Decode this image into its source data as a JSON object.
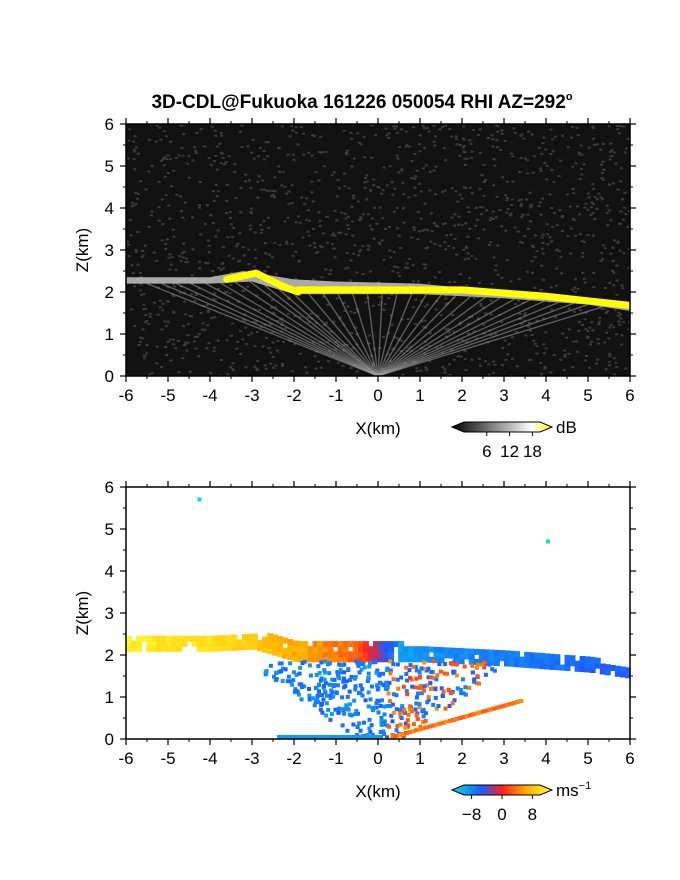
{
  "figure": {
    "title": "3D-CDL@Fukuoka 161226 050054 RHI AZ=292",
    "title_degree": "o"
  },
  "chart_data": [
    {
      "type": "heatmap",
      "panel": "backscatter",
      "xlabel": "X(km)",
      "ylabel": "Z(km)",
      "xlim": [
        -6,
        6
      ],
      "ylim": [
        0,
        6
      ],
      "x_ticks": [
        "-6",
        "-5",
        "-4",
        "-3",
        "-2",
        "-1",
        "0",
        "1",
        "2",
        "3",
        "4",
        "5",
        "6"
      ],
      "y_ticks": [
        "0",
        "1",
        "2",
        "3",
        "4",
        "5",
        "6"
      ],
      "colorbar": {
        "unit": "dB",
        "ticks": [
          "6",
          "12",
          "18"
        ],
        "range": [
          0,
          20
        ],
        "colors": [
          "#000000",
          "#ffffff",
          "#ffff00"
        ]
      },
      "features": {
        "cloud_layer_top_km": [
          [
            -6,
            2.35
          ],
          [
            -4,
            2.35
          ],
          [
            -3.2,
            2.5
          ],
          [
            -2,
            2.3
          ],
          [
            -1,
            2.25
          ],
          [
            1,
            2.2
          ],
          [
            3,
            2.0
          ],
          [
            5,
            1.85
          ],
          [
            6,
            1.65
          ]
        ],
        "cloud_layer_base_km": [
          [
            -6,
            2.2
          ],
          [
            -4,
            2.2
          ],
          [
            -3,
            2.25
          ],
          [
            -2,
            1.95
          ],
          [
            -1,
            1.95
          ],
          [
            1,
            1.95
          ],
          [
            3,
            1.85
          ],
          [
            5,
            1.7
          ],
          [
            6,
            1.55
          ]
        ],
        "saturation_segments_km": [
          [
            [
              -3.6,
              2.3
            ],
            [
              -2.9,
              2.45
            ],
            [
              -2.3,
              2.15
            ],
            [
              -1.9,
              2.0
            ]
          ],
          [
            [
              -1.9,
              2.05
            ],
            [
              0,
              2.05
            ],
            [
              2,
              2.05
            ],
            [
              4,
              1.9
            ],
            [
              6,
              1.68
            ]
          ]
        ]
      }
    },
    {
      "type": "heatmap",
      "panel": "doppler_velocity",
      "xlabel": "X(km)",
      "ylabel": "Z(km)",
      "xlim": [
        -6,
        6
      ],
      "ylim": [
        0,
        6
      ],
      "x_ticks": [
        "-6",
        "-5",
        "-4",
        "-3",
        "-2",
        "-1",
        "0",
        "1",
        "2",
        "3",
        "4",
        "5",
        "6"
      ],
      "y_ticks": [
        "0",
        "1",
        "2",
        "3",
        "4",
        "5",
        "6"
      ],
      "colorbar": {
        "unit": "ms",
        "unit_exp": "−1",
        "ticks": [
          "−8",
          "0",
          "8"
        ],
        "range": [
          -10,
          10
        ],
        "colors": [
          "#00e0e0",
          "#1e5aff",
          "#ff2020",
          "#ffb000",
          "#ffff30"
        ]
      },
      "features": {
        "layer_velocity_ms": [
          [
            -6,
            9
          ],
          [
            -4,
            8
          ],
          [
            -2,
            5
          ],
          [
            -0.5,
            2
          ],
          [
            0.5,
            -7
          ],
          [
            2,
            -6
          ],
          [
            4,
            -5
          ],
          [
            6,
            -4
          ]
        ],
        "outliers_km": [
          [
            -4.3,
            5.75
          ],
          [
            4.0,
            4.75
          ]
        ]
      }
    }
  ]
}
